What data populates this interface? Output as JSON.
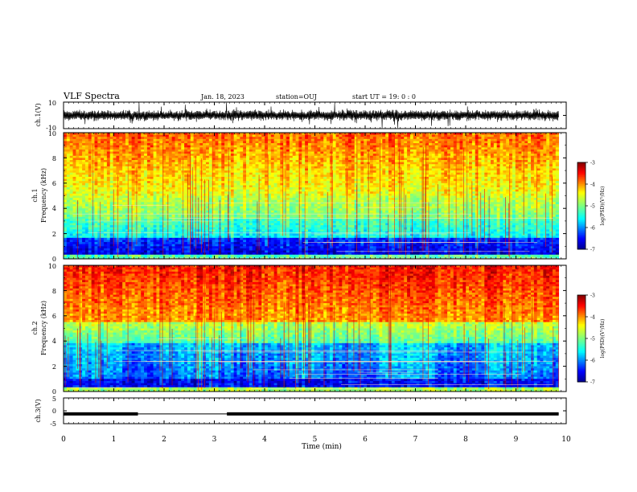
{
  "header": {
    "title": "VLF Spectra",
    "date": "Jan. 18, 2023",
    "station": "station=OUJ",
    "start": "start  UT =   19: 0  : 0"
  },
  "chart_data": [
    {
      "type": "line",
      "panel": "ch1-waveform",
      "ylabel": "ch.1(V)",
      "ylim": [
        -10,
        10
      ],
      "yticks": [
        "10",
        "-10"
      ],
      "xlim": [
        0,
        10
      ],
      "x_end": 9.85,
      "baseline": 0,
      "color": "#000000"
    },
    {
      "type": "heatmap",
      "panel": "ch1-spectrogram",
      "ylabel_top": "ch.1",
      "ylabel": "Frequency (kHz)",
      "ylim": [
        0,
        10
      ],
      "yticks": [
        "0",
        "2",
        "4",
        "6",
        "8",
        "10"
      ],
      "xlim": [
        0,
        10
      ],
      "x_end": 9.85,
      "colorbar": {
        "label": "log(PSD)(V²/Hz)",
        "range": [
          -7,
          -3
        ],
        "ticks": [
          "-3",
          "-4",
          "-5",
          "-6",
          "-7"
        ]
      }
    },
    {
      "type": "heatmap",
      "panel": "ch2-spectrogram",
      "ylabel_top": "ch.2",
      "ylabel": "Frequency (kHz)",
      "ylim": [
        0,
        10
      ],
      "yticks": [
        "0",
        "2",
        "4",
        "6",
        "8",
        "10"
      ],
      "xlim": [
        0,
        10
      ],
      "x_end": 9.85,
      "colorbar": {
        "label": "log(PSD)(V²/Hz)",
        "range": [
          -7,
          -3
        ],
        "ticks": [
          "-3",
          "-4",
          "-5",
          "-6",
          "-7"
        ]
      }
    },
    {
      "type": "line",
      "panel": "ch3-signal",
      "ylabel": "ch.3(V)",
      "ylim": [
        -5,
        5
      ],
      "yticks": [
        "5",
        "0",
        "-5"
      ],
      "xlim": [
        0,
        10
      ],
      "xticks": [
        "0",
        "1",
        "2",
        "3",
        "4",
        "5",
        "6",
        "7",
        "8",
        "9",
        "10"
      ],
      "xlabel": "Time (min)",
      "level": -1.2,
      "thick_segments": [
        [
          0,
          1.48
        ],
        [
          3.25,
          9.85
        ]
      ],
      "color": "#000000"
    }
  ],
  "colors": {
    "low": "#00008f",
    "blue": "#0000ff",
    "cyan": "#00ffff",
    "green": "#7fff7f",
    "yellow": "#ffff00",
    "red": "#ff0000",
    "high": "#800000"
  }
}
